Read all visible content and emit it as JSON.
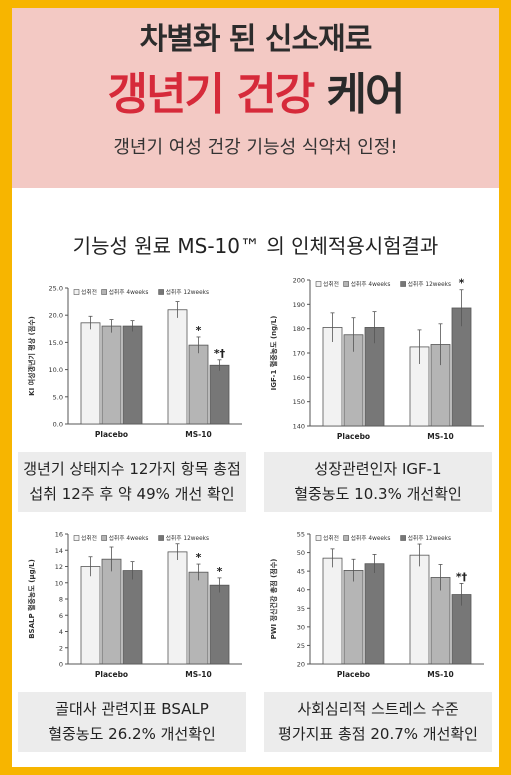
{
  "header": {
    "line1": "차별화 된 신소재로",
    "line2_red": "갱년기 건강",
    "line2_dark": "케어",
    "line3": "갱년기 여성 건강 기능성 식약처 인정!"
  },
  "section_title": "기능성 원료 MS-10™ 의 인체적용시험결과",
  "colors": {
    "frame": "#f7b500",
    "hero_bg": "#f3c9c4",
    "accent_red": "#d62a3a",
    "bar_before": "#f2f2f2",
    "bar_4w": "#b5b5b5",
    "bar_12w": "#777777"
  },
  "panels": [
    {
      "caption_line1": "갱년기 상태지수 12가지 항목 총점",
      "caption_line2": "섭취 12주 후 약 49% 개선 확인",
      "chart_data": {
        "type": "bar",
        "categories": [
          "Placebo",
          "MS-10"
        ],
        "series": [
          {
            "name": "섭취전",
            "values": [
              18.6,
              21.0
            ]
          },
          {
            "name": "섭취후 4weeks",
            "values": [
              18.0,
              14.5
            ]
          },
          {
            "name": "섭취후 12weeks",
            "values": [
              18.0,
              10.8
            ]
          }
        ],
        "errors": [
          [
            1.2,
            1.5
          ],
          [
            1.2,
            1.5
          ],
          [
            1.0,
            1.0
          ]
        ],
        "annotations": [
          [
            "",
            ""
          ],
          [
            "",
            "*"
          ],
          [
            "",
            "*†"
          ]
        ],
        "ylabel": "KI 여성갱년기 평상 (점수)",
        "ylim": [
          0,
          25
        ],
        "yticks": [
          "0.0",
          "5.0",
          "10.0",
          "15.0",
          "20.0",
          "25.0"
        ],
        "yvalues": [
          0,
          5,
          10,
          15,
          20,
          25
        ],
        "legend_placement": "top-right",
        "grid": false
      }
    },
    {
      "caption_line1": "성장관련인자 IGF-1",
      "caption_line2": "혈중농도 10.3% 개선확인",
      "chart_data": {
        "type": "bar",
        "categories": [
          "Placebo",
          "MS-10"
        ],
        "series": [
          {
            "name": "섭취전",
            "values": [
              180.5,
              172.5
            ]
          },
          {
            "name": "섭취후 4weeks",
            "values": [
              177.5,
              173.5
            ]
          },
          {
            "name": "섭취후 12weeks",
            "values": [
              180.5,
              188.5
            ]
          }
        ],
        "errors": [
          [
            6,
            7
          ],
          [
            7,
            8.5
          ],
          [
            6.5,
            7.5
          ]
        ],
        "annotations": [
          [
            "",
            ""
          ],
          [
            "",
            ""
          ],
          [
            "",
            "*"
          ]
        ],
        "ylabel": "IGF-1 혈중농도 (ng/L)",
        "ylim": [
          140,
          200
        ],
        "yticks": [
          "140",
          "150",
          "160",
          "170",
          "180",
          "190",
          "200"
        ],
        "yvalues": [
          140,
          150,
          160,
          170,
          180,
          190,
          200
        ],
        "legend_placement": "top-right",
        "grid": false
      }
    },
    {
      "caption_line1": "골대사 관련지표 BSALP",
      "caption_line2": "혈중농도 26.2% 개선확인",
      "chart_data": {
        "type": "bar",
        "categories": [
          "Placebo",
          "MS-10"
        ],
        "series": [
          {
            "name": "섭취전",
            "values": [
              12.0,
              13.8
            ]
          },
          {
            "name": "섭취후 4weeks",
            "values": [
              12.9,
              11.3
            ]
          },
          {
            "name": "섭취후 12weeks",
            "values": [
              11.5,
              9.7
            ]
          }
        ],
        "errors": [
          [
            1.2,
            1.0
          ],
          [
            1.5,
            1.0
          ],
          [
            1.1,
            0.9
          ]
        ],
        "annotations": [
          [
            "",
            ""
          ],
          [
            "",
            "*"
          ],
          [
            "",
            "*"
          ]
        ],
        "ylabel": "BSALP 혈중농도 (µg/L)",
        "ylim": [
          0,
          16
        ],
        "yticks": [
          "0",
          "2",
          "4",
          "6",
          "8",
          "10",
          "12",
          "14",
          "16"
        ],
        "yvalues": [
          0,
          2,
          4,
          6,
          8,
          10,
          12,
          14,
          16
        ],
        "legend_placement": "top-right",
        "grid": false
      }
    },
    {
      "caption_line1": "사회심리적 스트레스 수준",
      "caption_line2": "평가지표 총점 20.7% 개선확인",
      "chart_data": {
        "type": "bar",
        "categories": [
          "Placebo",
          "MS-10"
        ],
        "series": [
          {
            "name": "섭취전",
            "values": [
              48.5,
              49.3
            ]
          },
          {
            "name": "섭취후 4weeks",
            "values": [
              45.2,
              43.3
            ]
          },
          {
            "name": "섭취후 12weeks",
            "values": [
              47.0,
              38.7
            ]
          }
        ],
        "errors": [
          [
            2.5,
            3.0
          ],
          [
            3.0,
            3.5
          ],
          [
            2.5,
            3.0
          ]
        ],
        "annotations": [
          [
            "",
            ""
          ],
          [
            "",
            ""
          ],
          [
            "",
            "*†"
          ]
        ],
        "ylabel": "PWI 정신건강 총점 (점수)",
        "ylim": [
          20,
          55
        ],
        "yticks": [
          "20",
          "25",
          "30",
          "35",
          "40",
          "45",
          "50",
          "55"
        ],
        "yvalues": [
          20,
          25,
          30,
          35,
          40,
          45,
          50,
          55
        ],
        "legend_placement": "top-right",
        "grid": false
      }
    }
  ]
}
